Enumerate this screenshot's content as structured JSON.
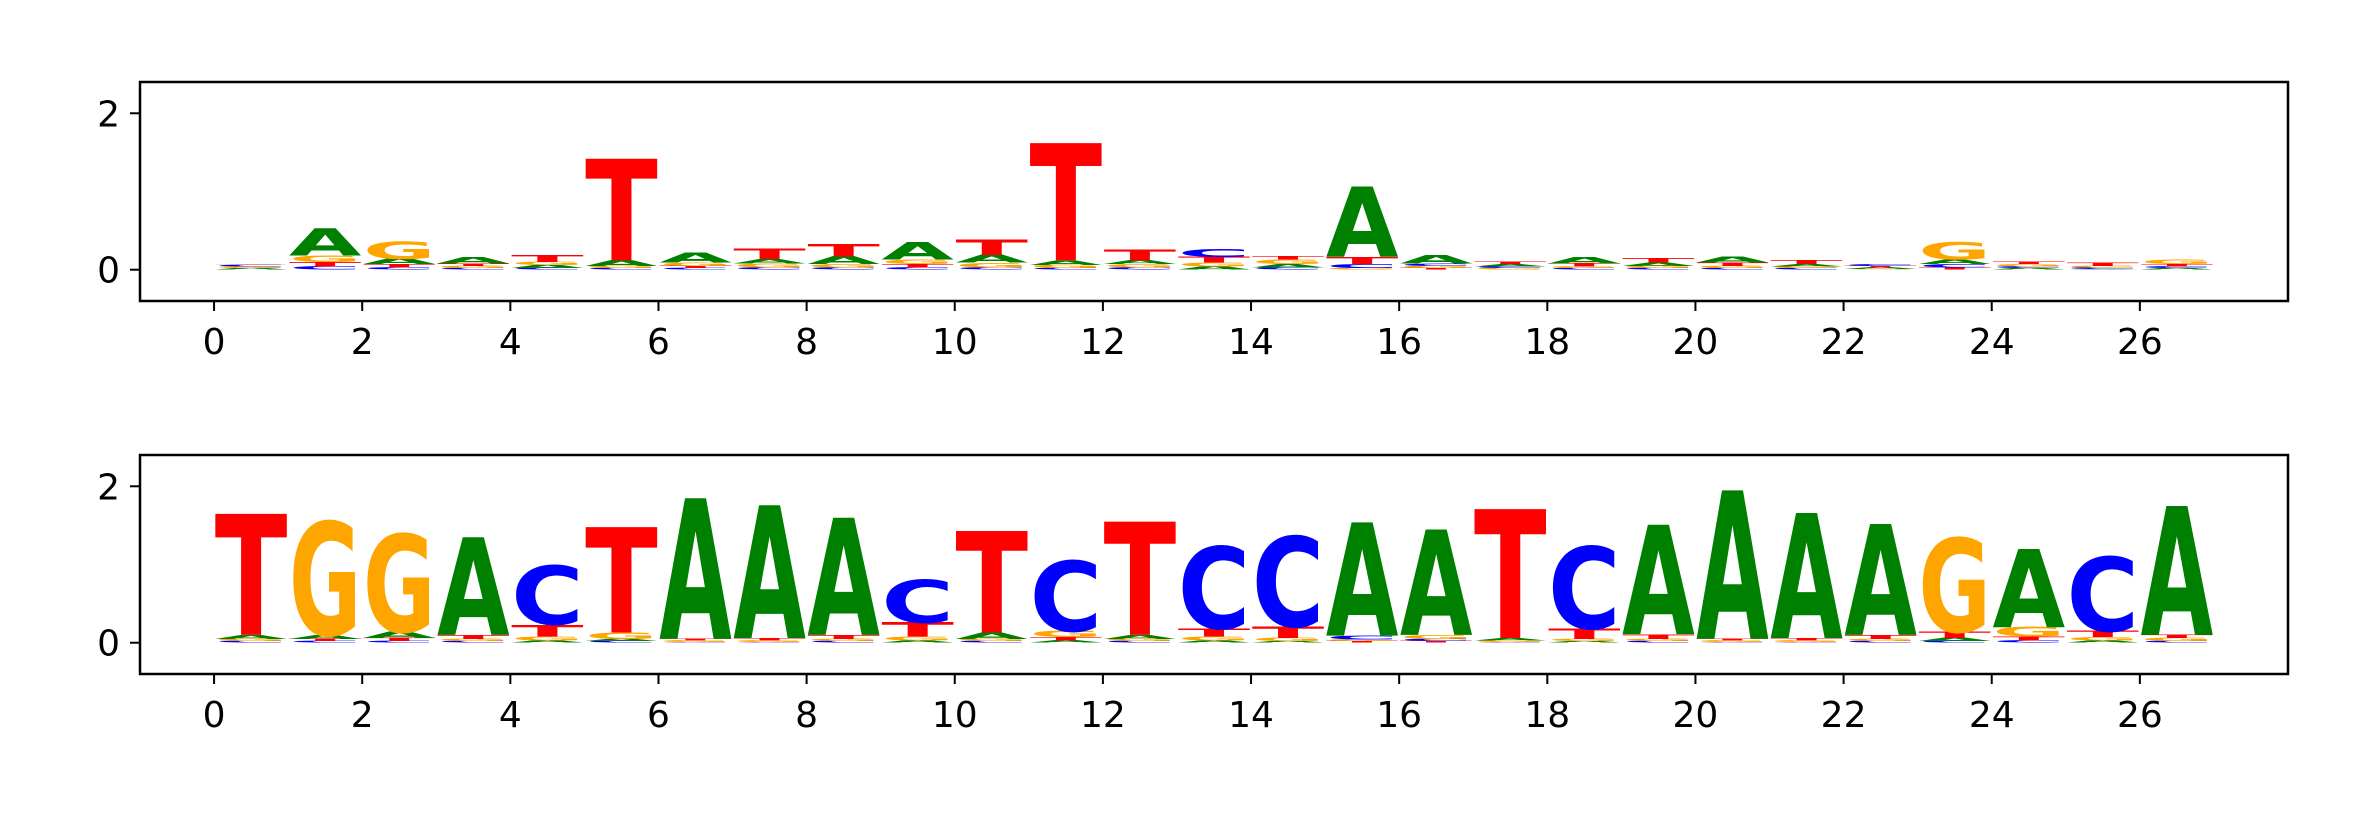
{
  "chart_data": [
    {
      "type": "sequence-logo",
      "title": "",
      "xlabel": "",
      "ylabel": "",
      "xlim": [
        -1,
        28
      ],
      "ylim": [
        -0.4,
        2.4
      ],
      "xticks": [
        0,
        2,
        4,
        6,
        8,
        10,
        12,
        14,
        16,
        18,
        20,
        22,
        24,
        26
      ],
      "yticks": [
        0,
        2
      ],
      "colors": {
        "A": "#008000",
        "C": "#0000ff",
        "G": "#ffa500",
        "T": "#ff0000"
      },
      "positions": [
        {
          "x": 0.5,
          "letters": [
            [
              "A",
              0.02
            ],
            [
              "G",
              0.02
            ],
            [
              "C",
              0.02
            ],
            [
              "T",
              0.01
            ]
          ]
        },
        {
          "x": 1.5,
          "letters": [
            [
              "C",
              0.04
            ],
            [
              "T",
              0.06
            ],
            [
              "G",
              0.08
            ],
            [
              "A",
              0.35
            ]
          ]
        },
        {
          "x": 2.5,
          "letters": [
            [
              "C",
              0.03
            ],
            [
              "T",
              0.04
            ],
            [
              "A",
              0.07
            ],
            [
              "G",
              0.22
            ]
          ]
        },
        {
          "x": 3.5,
          "letters": [
            [
              "C",
              0.02
            ],
            [
              "G",
              0.03
            ],
            [
              "T",
              0.03
            ],
            [
              "A",
              0.08
            ]
          ]
        },
        {
          "x": 4.5,
          "letters": [
            [
              "C",
              0.02
            ],
            [
              "A",
              0.04
            ],
            [
              "G",
              0.04
            ],
            [
              "T",
              0.09
            ]
          ]
        },
        {
          "x": 5.5,
          "letters": [
            [
              "C",
              0.02
            ],
            [
              "G",
              0.03
            ],
            [
              "A",
              0.07
            ],
            [
              "T",
              1.3
            ]
          ]
        },
        {
          "x": 6.5,
          "letters": [
            [
              "C",
              0.02
            ],
            [
              "T",
              0.03
            ],
            [
              "G",
              0.04
            ],
            [
              "A",
              0.12
            ]
          ]
        },
        {
          "x": 7.5,
          "letters": [
            [
              "C",
              0.03
            ],
            [
              "G",
              0.05
            ],
            [
              "A",
              0.06
            ],
            [
              "T",
              0.13
            ]
          ]
        },
        {
          "x": 8.5,
          "letters": [
            [
              "C",
              0.03
            ],
            [
              "G",
              0.04
            ],
            [
              "A",
              0.1
            ],
            [
              "T",
              0.16
            ]
          ]
        },
        {
          "x": 9.5,
          "letters": [
            [
              "C",
              0.03
            ],
            [
              "T",
              0.04
            ],
            [
              "G",
              0.06
            ],
            [
              "A",
              0.22
            ]
          ]
        },
        {
          "x": 10.5,
          "letters": [
            [
              "C",
              0.03
            ],
            [
              "G",
              0.06
            ],
            [
              "A",
              0.1
            ],
            [
              "T",
              0.2
            ]
          ]
        },
        {
          "x": 11.5,
          "letters": [
            [
              "C",
              0.02
            ],
            [
              "G",
              0.04
            ],
            [
              "A",
              0.06
            ],
            [
              "T",
              1.5
            ]
          ]
        },
        {
          "x": 12.5,
          "letters": [
            [
              "C",
              0.03
            ],
            [
              "G",
              0.04
            ],
            [
              "A",
              0.05
            ],
            [
              "T",
              0.14
            ]
          ]
        },
        {
          "x": 13.5,
          "letters": [
            [
              "A",
              0.04
            ],
            [
              "G",
              0.05
            ],
            [
              "T",
              0.07
            ],
            [
              "C",
              0.1
            ]
          ]
        },
        {
          "x": 14.5,
          "letters": [
            [
              "C",
              0.03
            ],
            [
              "A",
              0.04
            ],
            [
              "G",
              0.06
            ],
            [
              "T",
              0.04
            ]
          ]
        },
        {
          "x": 15.5,
          "letters": [
            [
              "G",
              0.02
            ],
            [
              "C",
              0.05
            ],
            [
              "T",
              0.09
            ],
            [
              "A",
              0.9
            ]
          ]
        },
        {
          "x": 16.5,
          "letters": [
            [
              "T",
              0.02
            ],
            [
              "G",
              0.03
            ],
            [
              "C",
              0.03
            ],
            [
              "A",
              0.11
            ]
          ]
        },
        {
          "x": 17.5,
          "letters": [
            [
              "G",
              0.02
            ],
            [
              "C",
              0.02
            ],
            [
              "A",
              0.03
            ],
            [
              "T",
              0.03
            ]
          ]
        },
        {
          "x": 18.5,
          "letters": [
            [
              "C",
              0.02
            ],
            [
              "G",
              0.02
            ],
            [
              "T",
              0.04
            ],
            [
              "A",
              0.08
            ]
          ]
        },
        {
          "x": 19.5,
          "letters": [
            [
              "C",
              0.02
            ],
            [
              "G",
              0.03
            ],
            [
              "A",
              0.04
            ],
            [
              "T",
              0.06
            ]
          ]
        },
        {
          "x": 20.5,
          "letters": [
            [
              "C",
              0.02
            ],
            [
              "G",
              0.03
            ],
            [
              "T",
              0.04
            ],
            [
              "A",
              0.07
            ]
          ]
        },
        {
          "x": 21.5,
          "letters": [
            [
              "C",
              0.02
            ],
            [
              "G",
              0.02
            ],
            [
              "A",
              0.03
            ],
            [
              "T",
              0.05
            ]
          ]
        },
        {
          "x": 22.5,
          "letters": [
            [
              "G",
              0.01
            ],
            [
              "A",
              0.02
            ],
            [
              "T",
              0.02
            ],
            [
              "C",
              0.02
            ]
          ]
        },
        {
          "x": 23.5,
          "letters": [
            [
              "T",
              0.03
            ],
            [
              "C",
              0.04
            ],
            [
              "A",
              0.06
            ],
            [
              "G",
              0.22
            ]
          ]
        },
        {
          "x": 24.5,
          "letters": [
            [
              "A",
              0.02
            ],
            [
              "C",
              0.02
            ],
            [
              "G",
              0.03
            ],
            [
              "T",
              0.03
            ]
          ]
        },
        {
          "x": 25.5,
          "letters": [
            [
              "A",
              0.01
            ],
            [
              "C",
              0.02
            ],
            [
              "G",
              0.02
            ],
            [
              "T",
              0.04
            ]
          ]
        },
        {
          "x": 26.5,
          "letters": [
            [
              "A",
              0.02
            ],
            [
              "C",
              0.02
            ],
            [
              "T",
              0.03
            ],
            [
              "G",
              0.06
            ]
          ]
        }
      ]
    },
    {
      "type": "sequence-logo",
      "title": "",
      "xlabel": "",
      "ylabel": "",
      "xlim": [
        -1,
        28
      ],
      "ylim": [
        -0.4,
        2.4
      ],
      "xticks": [
        0,
        2,
        4,
        6,
        8,
        10,
        12,
        14,
        16,
        18,
        20,
        22,
        24,
        26
      ],
      "yticks": [
        0,
        2
      ],
      "colors": {
        "A": "#008000",
        "C": "#0000ff",
        "G": "#ffa500",
        "T": "#ff0000"
      },
      "positions": [
        {
          "x": 0.5,
          "letters": [
            [
              "C",
              0.02
            ],
            [
              "G",
              0.03
            ],
            [
              "A",
              0.05
            ],
            [
              "T",
              1.55
            ]
          ]
        },
        {
          "x": 1.5,
          "letters": [
            [
              "C",
              0.02
            ],
            [
              "T",
              0.03
            ],
            [
              "A",
              0.05
            ],
            [
              "G",
              1.45
            ]
          ]
        },
        {
          "x": 2.5,
          "letters": [
            [
              "C",
              0.02
            ],
            [
              "T",
              0.04
            ],
            [
              "A",
              0.08
            ],
            [
              "G",
              1.25
            ]
          ]
        },
        {
          "x": 3.5,
          "letters": [
            [
              "C",
              0.02
            ],
            [
              "G",
              0.03
            ],
            [
              "T",
              0.05
            ],
            [
              "A",
              1.25
            ]
          ]
        },
        {
          "x": 4.5,
          "letters": [
            [
              "A",
              0.03
            ],
            [
              "G",
              0.05
            ],
            [
              "T",
              0.15
            ],
            [
              "C",
              0.75
            ]
          ]
        },
        {
          "x": 5.5,
          "letters": [
            [
              "C",
              0.02
            ],
            [
              "A",
              0.03
            ],
            [
              "G",
              0.08
            ],
            [
              "T",
              1.35
            ]
          ]
        },
        {
          "x": 6.5,
          "letters": [
            [
              "C",
              0.01
            ],
            [
              "G",
              0.02
            ],
            [
              "T",
              0.02
            ],
            [
              "A",
              1.8
            ]
          ]
        },
        {
          "x": 7.5,
          "letters": [
            [
              "C",
              0.01
            ],
            [
              "G",
              0.02
            ],
            [
              "T",
              0.03
            ],
            [
              "A",
              1.7
            ]
          ]
        },
        {
          "x": 8.5,
          "letters": [
            [
              "C",
              0.02
            ],
            [
              "G",
              0.03
            ],
            [
              "T",
              0.05
            ],
            [
              "A",
              1.5
            ]
          ]
        },
        {
          "x": 9.5,
          "letters": [
            [
              "A",
              0.03
            ],
            [
              "G",
              0.05
            ],
            [
              "T",
              0.18
            ],
            [
              "C",
              0.55
            ]
          ]
        },
        {
          "x": 10.5,
          "letters": [
            [
              "C",
              0.02
            ],
            [
              "G",
              0.03
            ],
            [
              "A",
              0.08
            ],
            [
              "T",
              1.3
            ]
          ]
        },
        {
          "x": 11.5,
          "letters": [
            [
              "A",
              0.03
            ],
            [
              "T",
              0.04
            ],
            [
              "G",
              0.08
            ],
            [
              "C",
              0.9
            ]
          ]
        },
        {
          "x": 12.5,
          "letters": [
            [
              "C",
              0.02
            ],
            [
              "G",
              0.03
            ],
            [
              "A",
              0.05
            ],
            [
              "T",
              1.45
            ]
          ]
        },
        {
          "x": 13.5,
          "letters": [
            [
              "A",
              0.03
            ],
            [
              "G",
              0.05
            ],
            [
              "T",
              0.1
            ],
            [
              "C",
              1.05
            ]
          ]
        },
        {
          "x": 14.5,
          "letters": [
            [
              "A",
              0.02
            ],
            [
              "G",
              0.04
            ],
            [
              "T",
              0.15
            ],
            [
              "C",
              1.15
            ]
          ]
        },
        {
          "x": 15.5,
          "letters": [
            [
              "T",
              0.02
            ],
            [
              "G",
              0.02
            ],
            [
              "C",
              0.05
            ],
            [
              "A",
              1.45
            ]
          ]
        },
        {
          "x": 16.5,
          "letters": [
            [
              "T",
              0.02
            ],
            [
              "C",
              0.03
            ],
            [
              "G",
              0.05
            ],
            [
              "A",
              1.35
            ]
          ]
        },
        {
          "x": 17.5,
          "letters": [
            [
              "C",
              0.01
            ],
            [
              "G",
              0.02
            ],
            [
              "A",
              0.03
            ],
            [
              "T",
              1.65
            ]
          ]
        },
        {
          "x": 18.5,
          "letters": [
            [
              "A",
              0.02
            ],
            [
              "G",
              0.03
            ],
            [
              "T",
              0.13
            ],
            [
              "C",
              1.05
            ]
          ]
        },
        {
          "x": 19.5,
          "letters": [
            [
              "C",
              0.02
            ],
            [
              "G",
              0.03
            ],
            [
              "T",
              0.06
            ],
            [
              "A",
              1.4
            ]
          ]
        },
        {
          "x": 20.5,
          "letters": [
            [
              "C",
              0.01
            ],
            [
              "G",
              0.02
            ],
            [
              "T",
              0.02
            ],
            [
              "A",
              1.9
            ]
          ]
        },
        {
          "x": 21.5,
          "letters": [
            [
              "C",
              0.01
            ],
            [
              "G",
              0.02
            ],
            [
              "T",
              0.03
            ],
            [
              "A",
              1.6
            ]
          ]
        },
        {
          "x": 22.5,
          "letters": [
            [
              "C",
              0.02
            ],
            [
              "G",
              0.03
            ],
            [
              "T",
              0.05
            ],
            [
              "A",
              1.42
            ]
          ]
        },
        {
          "x": 23.5,
          "letters": [
            [
              "C",
              0.02
            ],
            [
              "A",
              0.04
            ],
            [
              "T",
              0.08
            ],
            [
              "G",
              1.2
            ]
          ]
        },
        {
          "x": 24.5,
          "letters": [
            [
              "C",
              0.03
            ],
            [
              "T",
              0.05
            ],
            [
              "G",
              0.12
            ],
            [
              "A",
              1.0
            ]
          ]
        },
        {
          "x": 25.5,
          "letters": [
            [
              "A",
              0.03
            ],
            [
              "G",
              0.04
            ],
            [
              "T",
              0.08
            ],
            [
              "C",
              0.95
            ]
          ]
        },
        {
          "x": 26.5,
          "letters": [
            [
              "C",
              0.02
            ],
            [
              "G",
              0.04
            ],
            [
              "T",
              0.04
            ],
            [
              "A",
              1.65
            ]
          ]
        }
      ]
    }
  ]
}
